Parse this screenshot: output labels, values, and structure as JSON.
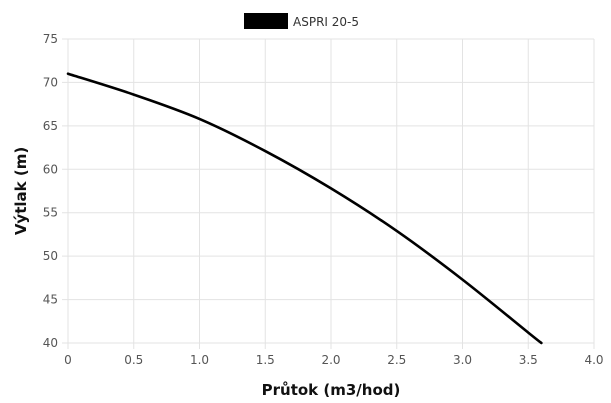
{
  "chart_data": {
    "type": "line",
    "xlabel": "Průtok (m3/hod)",
    "ylabel": "Výtlak (m)",
    "xlim": [
      0,
      4.0
    ],
    "ylim": [
      40,
      75
    ],
    "x_ticks": [
      "0",
      "0.5",
      "1.0",
      "1.5",
      "2.0",
      "2.5",
      "3.0",
      "3.5",
      "4.0"
    ],
    "y_ticks": [
      "40",
      "45",
      "50",
      "55",
      "60",
      "65",
      "70",
      "75"
    ],
    "grid": true,
    "legend_position": "top-center",
    "series": [
      {
        "name": "ASPRI 20-5",
        "color": "#000000",
        "x": [
          0,
          0.5,
          1.0,
          1.5,
          2.0,
          2.5,
          3.0,
          3.5,
          3.6
        ],
        "y": [
          71.0,
          68.6,
          65.8,
          62.1,
          57.8,
          52.9,
          47.3,
          41.2,
          40.0
        ]
      }
    ]
  }
}
